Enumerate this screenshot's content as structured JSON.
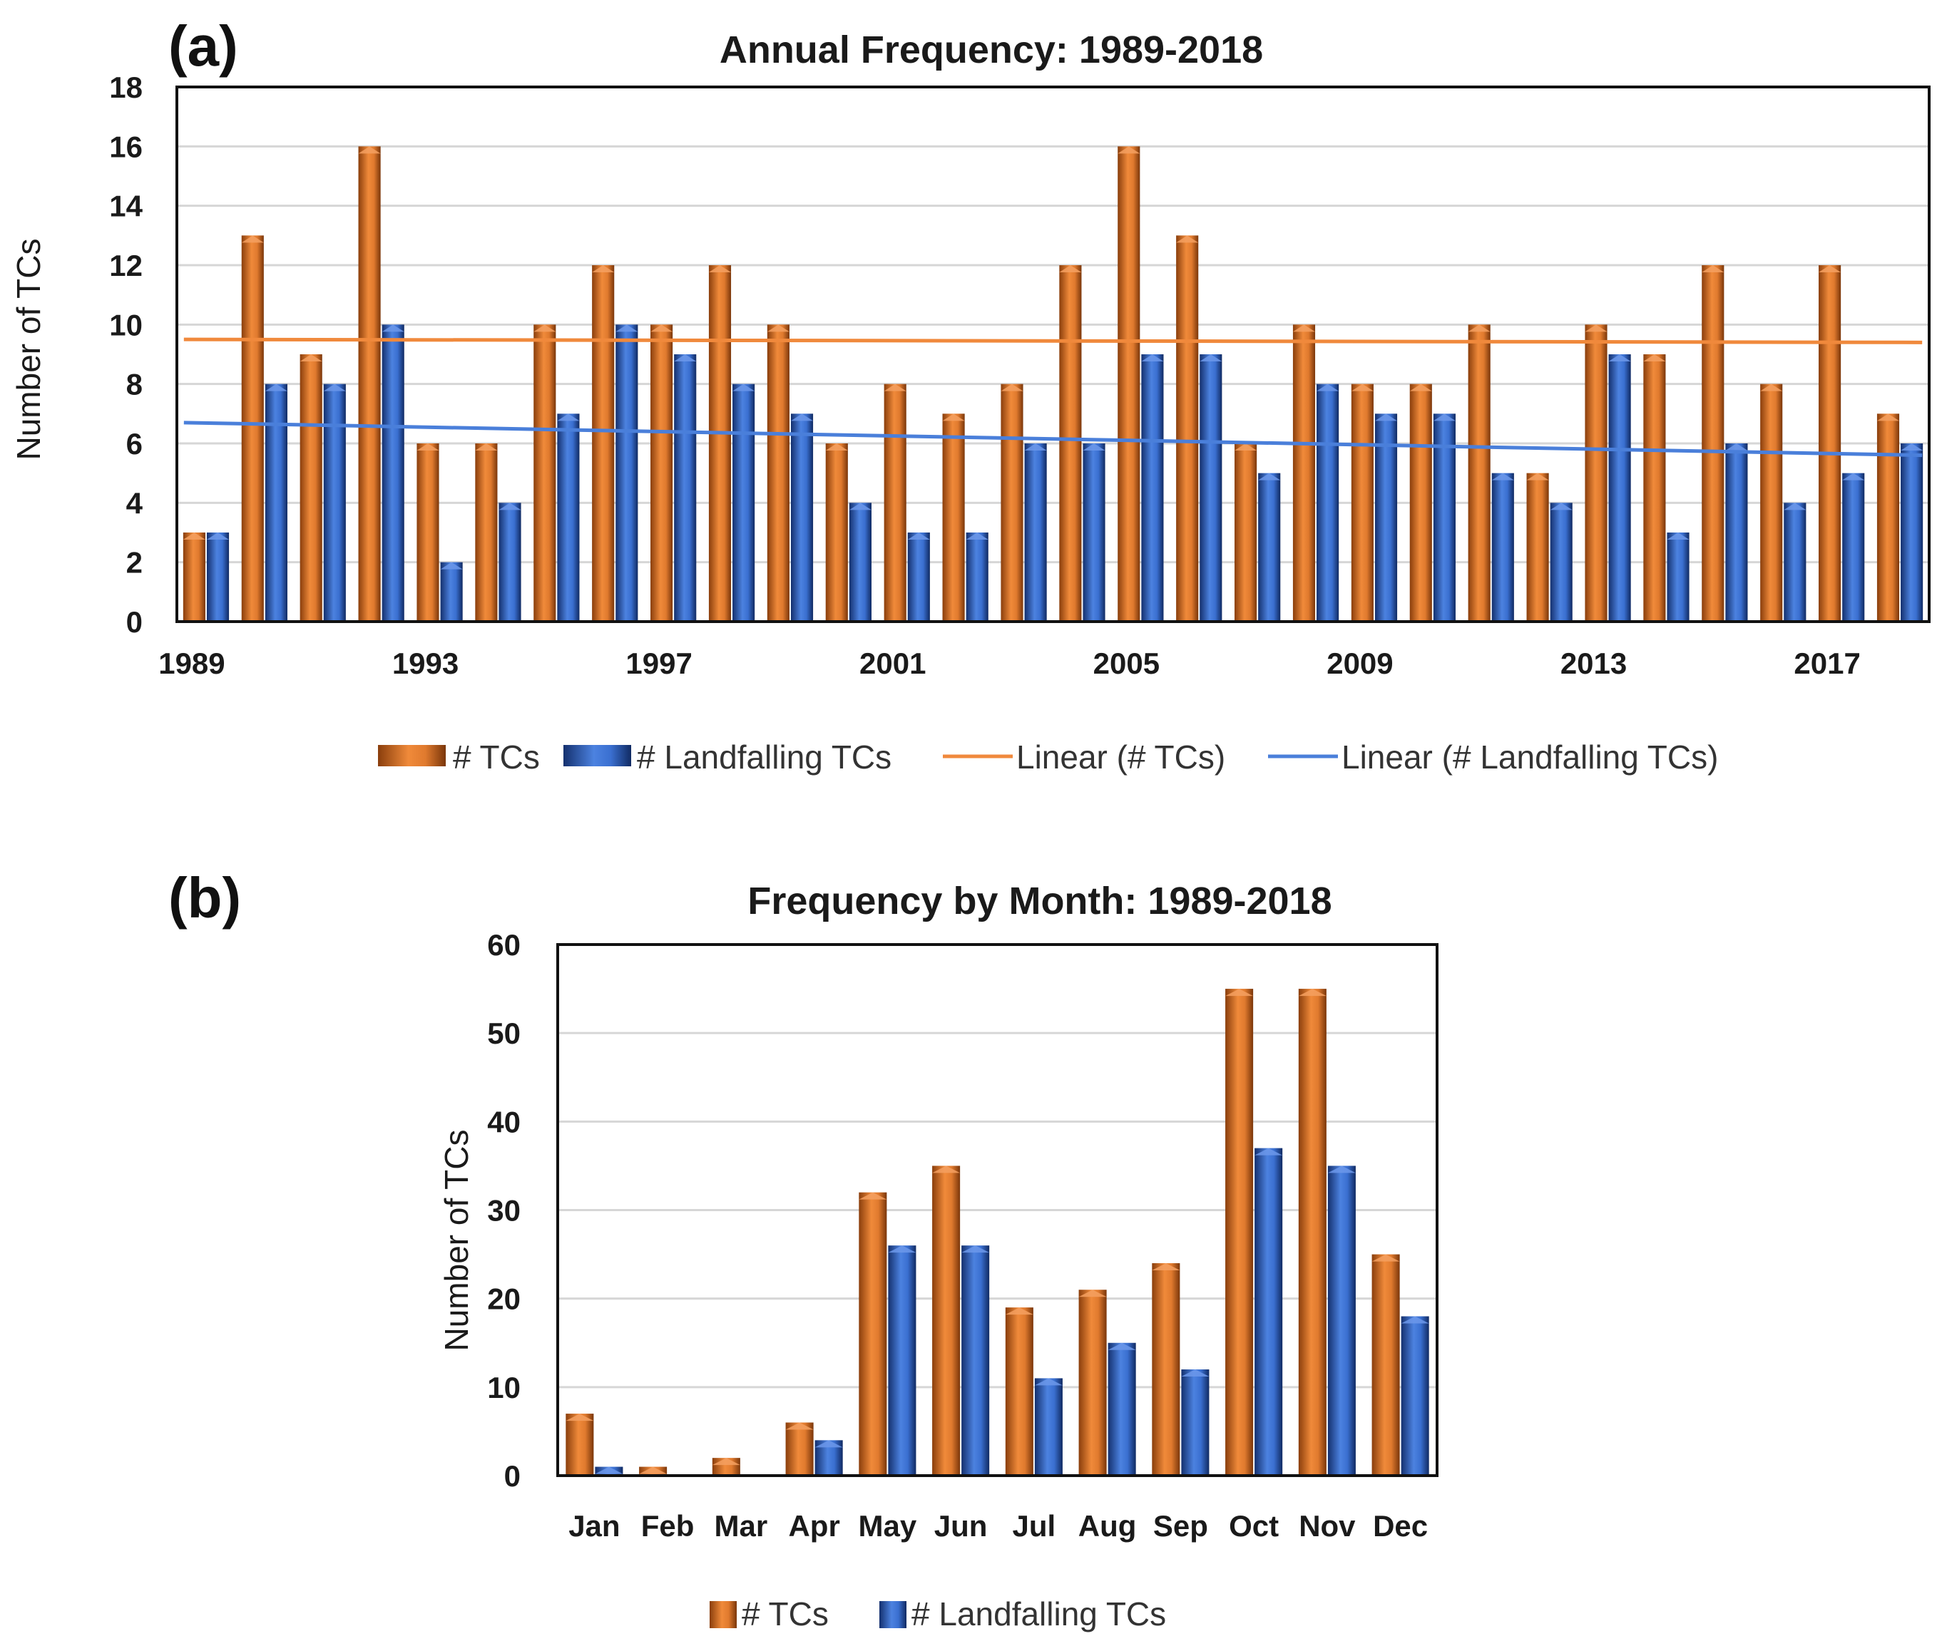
{
  "colors": {
    "tcs": "#E07A2E",
    "tcs_dark": "#8A3E0C",
    "landfall": "#3A6FD0",
    "landfall_dark": "#14306E",
    "trend_tcs": "#F0893C",
    "trend_landfall": "#4A7FDA"
  },
  "chart_data": [
    {
      "panel": "(a)",
      "type": "bar",
      "title": "Annual Frequency: 1989-2018",
      "xlabel": "",
      "ylabel": "Number of TCs",
      "ylim": [
        0,
        18
      ],
      "yticks": [
        0,
        2,
        4,
        6,
        8,
        10,
        12,
        14,
        16,
        18
      ],
      "xtick_labels": [
        "1989",
        "1993",
        "1997",
        "2001",
        "2005",
        "2009",
        "2013",
        "2017"
      ],
      "categories": [
        "1989",
        "1990",
        "1991",
        "1992",
        "1993",
        "1994",
        "1995",
        "1996",
        "1997",
        "1998",
        "1999",
        "2000",
        "2001",
        "2002",
        "2003",
        "2004",
        "2005",
        "2006",
        "2007",
        "2008",
        "2009",
        "2010",
        "2011",
        "2012",
        "2013",
        "2014",
        "2015",
        "2016",
        "2017",
        "2018"
      ],
      "series": [
        {
          "name": "# TCs",
          "values": [
            3,
            13,
            9,
            16,
            6,
            6,
            10,
            12,
            10,
            12,
            10,
            6,
            8,
            7,
            8,
            12,
            16,
            13,
            6,
            10,
            8,
            8,
            10,
            5,
            10,
            9,
            12,
            8,
            12,
            7
          ]
        },
        {
          "name": "# Landfalling TCs",
          "values": [
            3,
            8,
            8,
            10,
            2,
            4,
            7,
            10,
            9,
            8,
            7,
            4,
            3,
            3,
            6,
            6,
            9,
            9,
            5,
            8,
            7,
            7,
            5,
            4,
            9,
            3,
            6,
            4,
            5,
            6
          ]
        }
      ],
      "trendlines": [
        {
          "name": "Linear (# TCs)",
          "start": 9.5,
          "end": 9.4
        },
        {
          "name": "Linear (# Landfalling TCs)",
          "start": 6.7,
          "end": 5.6
        }
      ],
      "legend": [
        "# TCs",
        "# Landfalling TCs",
        "Linear (# TCs)",
        "Linear (# Landfalling TCs)"
      ],
      "legend_position": "bottom"
    },
    {
      "panel": "(b)",
      "type": "bar",
      "title": "Frequency by Month: 1989-2018",
      "xlabel": "",
      "ylabel": "Number of TCs",
      "ylim": [
        0,
        60
      ],
      "yticks": [
        0,
        10,
        20,
        30,
        40,
        50,
        60
      ],
      "categories": [
        "Jan",
        "Feb",
        "Mar",
        "Apr",
        "May",
        "Jun",
        "Jul",
        "Aug",
        "Sep",
        "Oct",
        "Nov",
        "Dec"
      ],
      "series": [
        {
          "name": "# TCs",
          "values": [
            7,
            1,
            2,
            6,
            32,
            35,
            19,
            21,
            24,
            55,
            55,
            25
          ]
        },
        {
          "name": "# Landfalling TCs",
          "values": [
            1,
            0,
            0,
            4,
            26,
            26,
            11,
            15,
            12,
            37,
            35,
            18
          ]
        }
      ],
      "legend": [
        "# TCs",
        "# Landfalling TCs"
      ],
      "legend_position": "bottom"
    }
  ]
}
